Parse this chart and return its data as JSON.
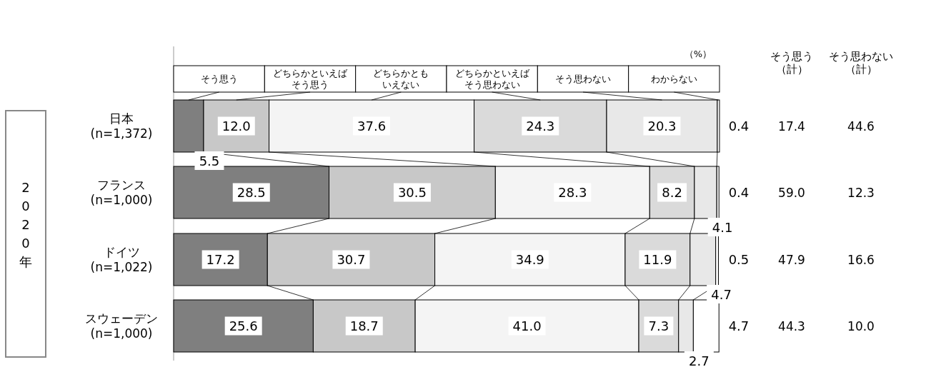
{
  "chart_data": {
    "type": "bar",
    "orientation": "horizontal",
    "stacked": true,
    "legend": "top",
    "categories": [
      "日本\n(n=1,372)",
      "フランス\n(n=1,000)",
      "ドイツ\n(n=1,022)",
      "スウェーデン\n(n=1,000)"
    ],
    "series": [
      {
        "name": "そう思う",
        "color": "#7f7f7f",
        "values": [
          5.5,
          28.5,
          17.2,
          25.6
        ],
        "value_labels": [
          "5.5",
          "28.5",
          "17.2",
          "25.6"
        ]
      },
      {
        "name": "どちらかといえばそう思う",
        "color": "#c8c8c8",
        "values": [
          12.0,
          30.5,
          30.7,
          18.7
        ],
        "value_labels": [
          "12.0",
          "30.5",
          "30.7",
          "18.7"
        ]
      },
      {
        "name": "どちらかともいえない",
        "color": "#f4f4f4",
        "values": [
          37.6,
          28.3,
          34.9,
          41.0
        ],
        "value_labels": [
          "37.6",
          "28.3",
          "34.9",
          "41.0"
        ]
      },
      {
        "name": "どちらかといえばそう思わない",
        "color": "#dadada",
        "values": [
          24.3,
          8.2,
          11.9,
          7.3
        ],
        "value_labels": [
          "24.3",
          "8.2",
          "11.9",
          "7.3"
        ]
      },
      {
        "name": "そう思わない",
        "color": "#e8e8e8",
        "values": [
          20.3,
          4.1,
          4.7,
          2.7
        ],
        "value_labels": [
          "20.3",
          "4.1",
          "4.7",
          "2.7"
        ]
      },
      {
        "name": "わからない",
        "color": "#ffffff",
        "values": [
          0.4,
          0.4,
          0.5,
          4.7
        ],
        "value_labels": [
          "0.4",
          "0.4",
          "0.5",
          "4.7"
        ]
      }
    ],
    "annotations": [
      "（%）",
      "2020年",
      "そう思う（計）",
      "そう思わない（計）",
      "17.4",
      "44.6",
      "59.0",
      "12.3",
      "47.9",
      "16.6",
      "44.3",
      "10.0"
    ]
  }
}
